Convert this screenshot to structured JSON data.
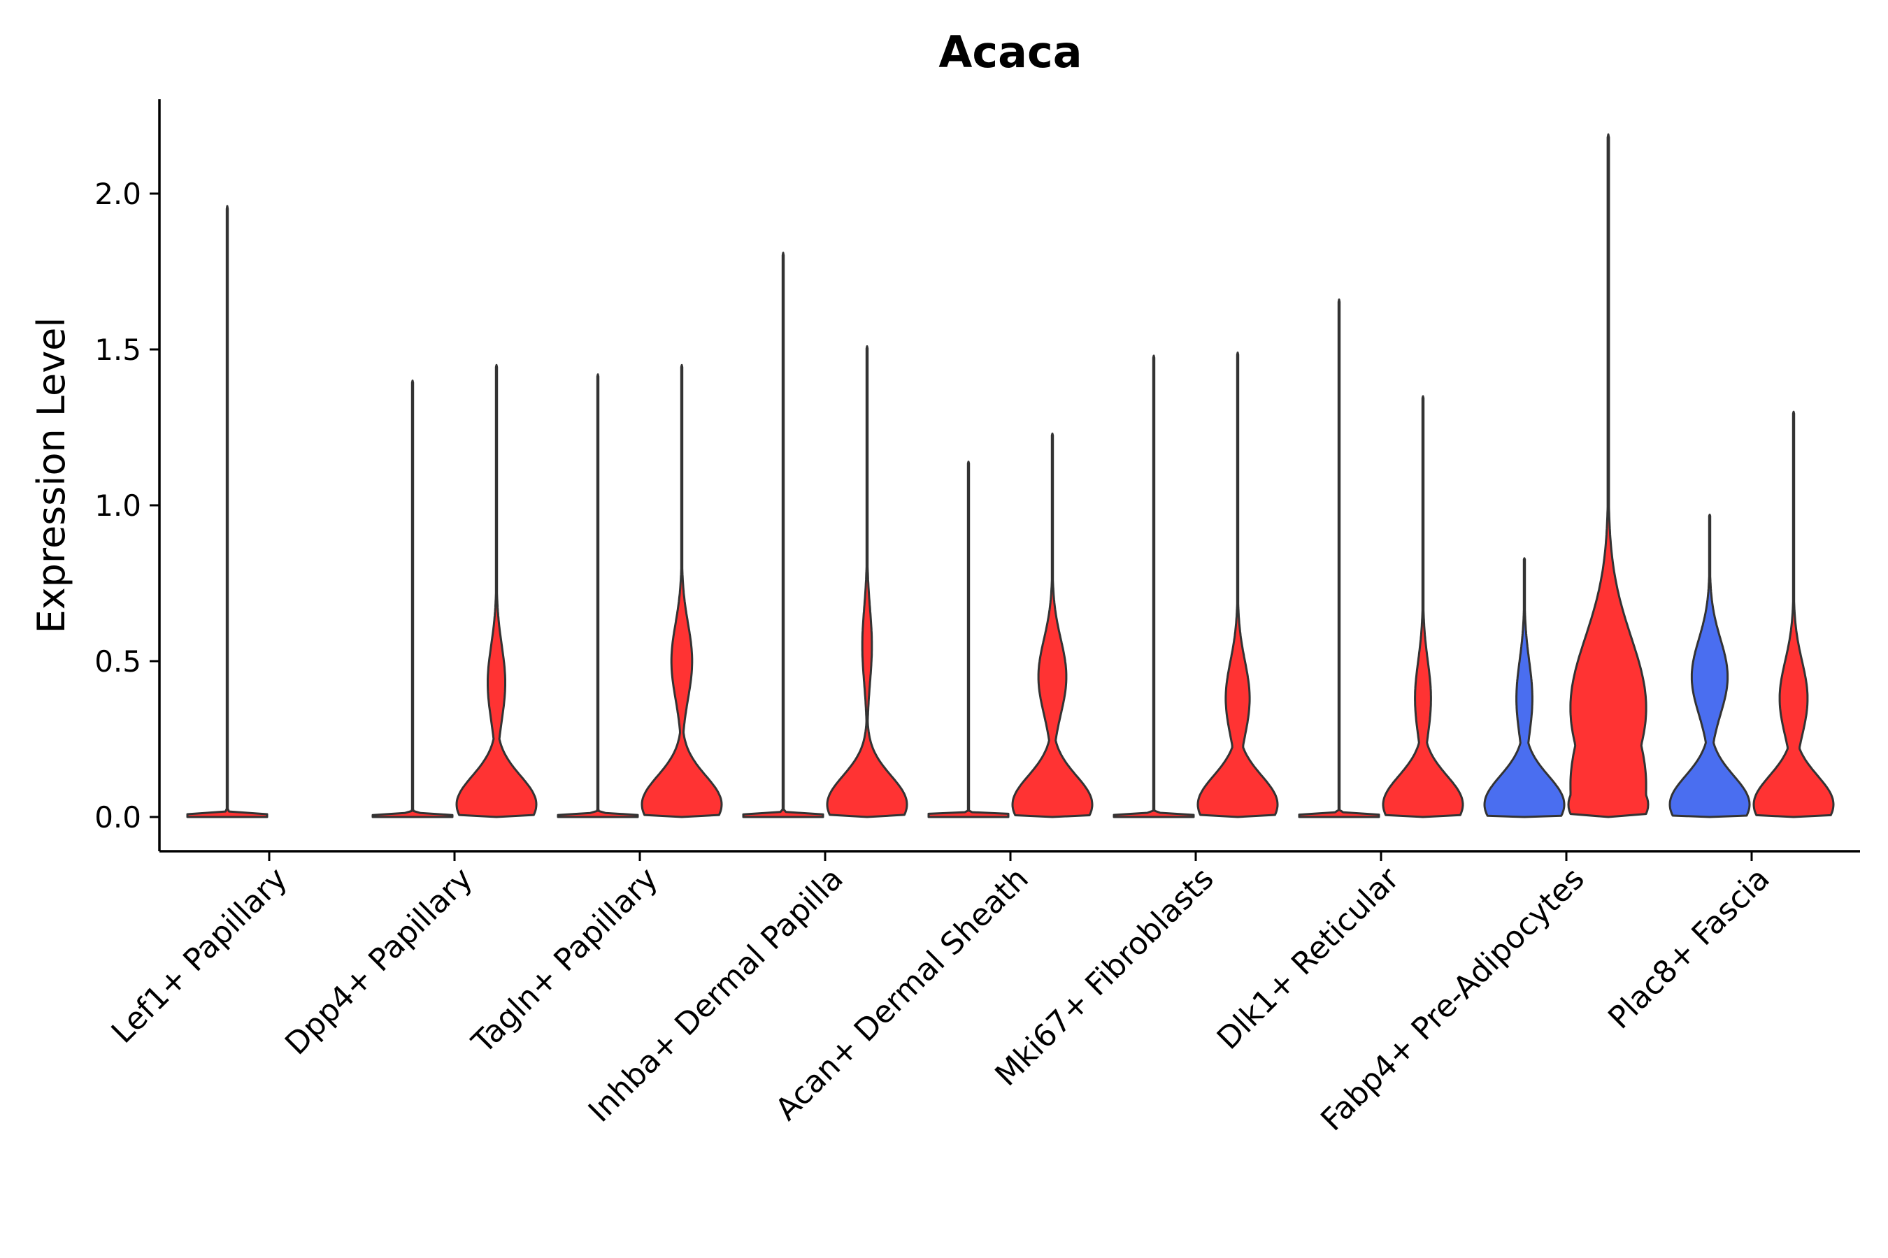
{
  "chart_data": {
    "type": "violin",
    "title": "Acaca",
    "xlabel": "",
    "ylabel": "Expression Level",
    "ylim": [
      -0.11,
      2.3
    ],
    "yticks": [
      0.0,
      0.5,
      1.0,
      1.5,
      2.0
    ],
    "ytick_labels": [
      "0.0",
      "0.5",
      "1.0",
      "1.5",
      "2.0"
    ],
    "colors": {
      "red": "#ff3333",
      "blue": "#4a6ef0",
      "outline": "#333333",
      "axis": "#000000"
    },
    "categories": [
      "Lef1+ Papillary",
      "Dpp4+ Papillary",
      "Tagln+ Papillary",
      "Inhba+ Dermal Papilla",
      "Acan+ Dermal Sheath",
      "Mki67+ Fibroblasts",
      "Dlk1+ Reticular",
      "Fabp4+ Pre-Adipocytes",
      "Plac8+ Fascia"
    ],
    "violins": [
      {
        "category": "Lef1+ Papillary",
        "group": "left",
        "color": "red",
        "max": 1.96,
        "shape": "flat"
      },
      {
        "category": "Dpp4+ Papillary",
        "group": "left",
        "color": "red",
        "max": 1.4,
        "shape": "flat"
      },
      {
        "category": "Dpp4+ Papillary",
        "group": "right",
        "color": "red",
        "max": 1.45,
        "shape": "bimodal",
        "mode2": 0.43,
        "mode2_width": 0.22,
        "base_width": 1.0
      },
      {
        "category": "Tagln+ Papillary",
        "group": "left",
        "color": "red",
        "max": 1.42,
        "shape": "flat"
      },
      {
        "category": "Tagln+ Papillary",
        "group": "right",
        "color": "red",
        "max": 1.45,
        "shape": "bimodal",
        "mode2": 0.5,
        "mode2_width": 0.26,
        "base_width": 1.0
      },
      {
        "category": "Inhba+ Dermal Papilla",
        "group": "left",
        "color": "red",
        "max": 1.81,
        "shape": "flat"
      },
      {
        "category": "Inhba+ Dermal Papilla",
        "group": "right",
        "color": "red",
        "max": 1.51,
        "shape": "bimodal",
        "mode2": 0.55,
        "mode2_width": 0.12,
        "base_width": 1.0
      },
      {
        "category": "Acan+ Dermal Sheath",
        "group": "left",
        "color": "red",
        "max": 1.14,
        "shape": "flat"
      },
      {
        "category": "Acan+ Dermal Sheath",
        "group": "right",
        "color": "red",
        "max": 1.23,
        "shape": "bimodal",
        "mode2": 0.45,
        "mode2_width": 0.35,
        "base_width": 1.0
      },
      {
        "category": "Mki67+ Fibroblasts",
        "group": "left",
        "color": "red",
        "max": 1.48,
        "shape": "flat"
      },
      {
        "category": "Mki67+ Fibroblasts",
        "group": "right",
        "color": "red",
        "max": 1.49,
        "shape": "bimodal",
        "mode2": 0.38,
        "mode2_width": 0.3,
        "base_width": 1.0
      },
      {
        "category": "Dlk1+ Reticular",
        "group": "left",
        "color": "red",
        "max": 1.66,
        "shape": "flat"
      },
      {
        "category": "Dlk1+ Reticular",
        "group": "right",
        "color": "red",
        "max": 1.35,
        "shape": "bimodal",
        "mode2": 0.38,
        "mode2_width": 0.2,
        "base_width": 1.0
      },
      {
        "category": "Fabp4+ Pre-Adipocytes",
        "group": "left",
        "color": "blue",
        "max": 0.83,
        "shape": "bimodal",
        "mode2": 0.38,
        "mode2_width": 0.2,
        "base_width": 1.0
      },
      {
        "category": "Fabp4+ Pre-Adipocytes",
        "group": "right",
        "color": "red",
        "max": 2.19,
        "shape": "broad",
        "mode2": 0.35,
        "mode2_width": 1.0,
        "base_width": 1.0
      },
      {
        "category": "Plac8+ Fascia",
        "group": "left",
        "color": "blue",
        "max": 0.97,
        "shape": "bimodal",
        "mode2": 0.45,
        "mode2_width": 0.45,
        "base_width": 1.0
      },
      {
        "category": "Plac8+ Fascia",
        "group": "right",
        "color": "red",
        "max": 1.3,
        "shape": "bimodal",
        "mode2": 0.38,
        "mode2_width": 0.35,
        "base_width": 1.0
      }
    ]
  }
}
